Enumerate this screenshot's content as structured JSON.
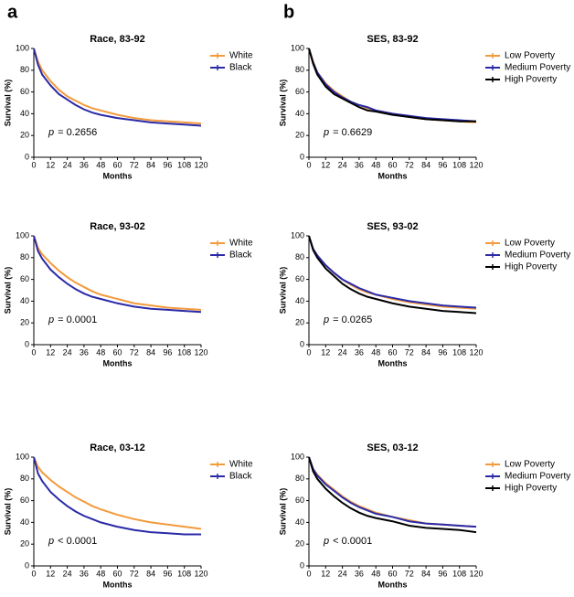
{
  "panel_labels": [
    "a",
    "b"
  ],
  "chart_data": [
    {
      "type": "line",
      "title": "Race, 83-92",
      "xlabel": "Months",
      "ylabel": "Survival (%)",
      "p_label": "p",
      "p_text": "= 0.2656",
      "x": [
        0,
        3,
        6,
        12,
        18,
        24,
        30,
        36,
        42,
        48,
        60,
        72,
        84,
        96,
        108,
        120
      ],
      "xlim": [
        0,
        120
      ],
      "ylim": [
        0,
        100
      ],
      "xticks": [
        0,
        12,
        24,
        36,
        48,
        60,
        72,
        84,
        96,
        108,
        120
      ],
      "yticks": [
        0,
        20,
        40,
        60,
        80,
        100
      ],
      "legend": "upper right",
      "series": [
        {
          "name": "White",
          "color": "#f39a3c",
          "values": [
            100,
            88,
            80,
            70,
            62,
            56,
            52,
            48,
            45,
            43,
            39,
            36,
            34,
            33,
            32,
            31
          ]
        },
        {
          "name": "Black",
          "color": "#2a2aa8",
          "values": [
            100,
            85,
            76,
            66,
            58,
            53,
            48,
            44,
            41,
            39,
            36,
            34,
            32,
            31,
            30,
            29
          ]
        }
      ]
    },
    {
      "type": "line",
      "title": "SES, 83-92",
      "xlabel": "Months",
      "ylabel": "Survival (%)",
      "p_label": "p",
      "p_text": "= 0.6629",
      "x": [
        0,
        3,
        6,
        12,
        18,
        24,
        30,
        36,
        42,
        48,
        60,
        72,
        84,
        96,
        108,
        120
      ],
      "xlim": [
        0,
        120
      ],
      "ylim": [
        0,
        100
      ],
      "xticks": [
        0,
        12,
        24,
        36,
        48,
        60,
        72,
        84,
        96,
        108,
        120
      ],
      "yticks": [
        0,
        20,
        40,
        60,
        80,
        100
      ],
      "legend": "upper right",
      "series": [
        {
          "name": "Low Poverty",
          "color": "#f39a3c",
          "values": [
            100,
            88,
            78,
            68,
            61,
            56,
            51,
            48,
            45,
            43,
            40,
            37,
            35,
            34,
            33,
            32
          ]
        },
        {
          "name": "Medium Poverty",
          "color": "#2a2aa8",
          "values": [
            100,
            87,
            78,
            67,
            60,
            55,
            51,
            48,
            46,
            43,
            40,
            38,
            36,
            35,
            34,
            33
          ]
        },
        {
          "name": "High Poverty",
          "color": "#000000",
          "values": [
            100,
            86,
            76,
            65,
            58,
            54,
            50,
            46,
            43,
            42,
            39,
            37,
            35,
            34,
            33,
            33
          ]
        }
      ]
    },
    {
      "type": "line",
      "title": "Race, 93-02",
      "xlabel": "Months",
      "ylabel": "Survival (%)",
      "p_label": "p",
      "p_text": "= 0.0001",
      "x": [
        0,
        3,
        6,
        12,
        18,
        24,
        30,
        36,
        42,
        48,
        60,
        72,
        84,
        96,
        108,
        120
      ],
      "xlim": [
        0,
        120
      ],
      "ylim": [
        0,
        100
      ],
      "xticks": [
        0,
        12,
        24,
        36,
        48,
        60,
        72,
        84,
        96,
        108,
        120
      ],
      "yticks": [
        0,
        20,
        40,
        60,
        80,
        100
      ],
      "legend": "upper right",
      "series": [
        {
          "name": "White",
          "color": "#f39a3c",
          "values": [
            100,
            89,
            83,
            75,
            68,
            62,
            57,
            53,
            49,
            46,
            42,
            38,
            36,
            34,
            33,
            32
          ]
        },
        {
          "name": "Black",
          "color": "#2a2aa8",
          "values": [
            100,
            86,
            79,
            69,
            62,
            56,
            51,
            47,
            44,
            42,
            38,
            35,
            33,
            32,
            31,
            30
          ]
        }
      ]
    },
    {
      "type": "line",
      "title": "SES, 93-02",
      "xlabel": "Months",
      "ylabel": "Survival (%)",
      "p_label": "p",
      "p_text": "= 0.0265",
      "x": [
        0,
        3,
        6,
        12,
        18,
        24,
        30,
        36,
        42,
        48,
        60,
        72,
        84,
        96,
        108,
        120
      ],
      "xlim": [
        0,
        120
      ],
      "ylim": [
        0,
        100
      ],
      "xticks": [
        0,
        12,
        24,
        36,
        48,
        60,
        72,
        84,
        96,
        108,
        120
      ],
      "yticks": [
        0,
        20,
        40,
        60,
        80,
        100
      ],
      "legend": "upper right",
      "series": [
        {
          "name": "Low Poverty",
          "color": "#f39a3c",
          "values": [
            100,
            88,
            82,
            73,
            66,
            60,
            55,
            51,
            48,
            46,
            42,
            39,
            37,
            35,
            34,
            33
          ]
        },
        {
          "name": "Medium Poverty",
          "color": "#2a2aa8",
          "values": [
            100,
            88,
            82,
            73,
            66,
            60,
            56,
            52,
            49,
            46,
            43,
            40,
            38,
            36,
            35,
            34
          ]
        },
        {
          "name": "High Poverty",
          "color": "#000000",
          "values": [
            100,
            87,
            80,
            70,
            63,
            56,
            51,
            47,
            44,
            42,
            38,
            35,
            33,
            31,
            30,
            29
          ]
        }
      ]
    },
    {
      "type": "line",
      "title": "Race, 03-12",
      "xlabel": "Months",
      "ylabel": "Survival (%)",
      "p_label": "p",
      "p_text": "< 0.0001",
      "x": [
        0,
        3,
        6,
        12,
        18,
        24,
        30,
        36,
        42,
        48,
        60,
        72,
        84,
        96,
        108,
        120
      ],
      "xlim": [
        0,
        120
      ],
      "ylim": [
        0,
        100
      ],
      "xticks": [
        0,
        12,
        24,
        36,
        48,
        60,
        72,
        84,
        96,
        108,
        120
      ],
      "yticks": [
        0,
        20,
        40,
        60,
        80,
        100
      ],
      "legend": "upper right",
      "series": [
        {
          "name": "White",
          "color": "#f39a3c",
          "values": [
            100,
            91,
            86,
            79,
            73,
            68,
            63,
            59,
            55,
            52,
            47,
            43,
            40,
            38,
            36,
            34
          ]
        },
        {
          "name": "Black",
          "color": "#2a2aa8",
          "values": [
            100,
            85,
            78,
            68,
            61,
            55,
            50,
            46,
            43,
            40,
            36,
            33,
            31,
            30,
            29,
            29
          ]
        }
      ]
    },
    {
      "type": "line",
      "title": "SES, 03-12",
      "xlabel": "Months",
      "ylabel": "Survival (%)",
      "p_label": "p",
      "p_text": "< 0.0001",
      "x": [
        0,
        3,
        6,
        12,
        18,
        24,
        30,
        36,
        42,
        48,
        60,
        72,
        84,
        96,
        108,
        120
      ],
      "xlim": [
        0,
        120
      ],
      "ylim": [
        0,
        100
      ],
      "xticks": [
        0,
        12,
        24,
        36,
        48,
        60,
        72,
        84,
        96,
        108,
        120
      ],
      "yticks": [
        0,
        20,
        40,
        60,
        80,
        100
      ],
      "legend": "upper right",
      "series": [
        {
          "name": "Low Poverty",
          "color": "#f39a3c",
          "values": [
            100,
            89,
            84,
            76,
            70,
            64,
            59,
            55,
            52,
            49,
            45,
            42,
            39,
            38,
            37,
            36
          ]
        },
        {
          "name": "Medium Poverty",
          "color": "#2a2aa8",
          "values": [
            100,
            89,
            83,
            75,
            69,
            63,
            58,
            54,
            51,
            48,
            45,
            41,
            39,
            38,
            37,
            36
          ]
        },
        {
          "name": "High Poverty",
          "color": "#000000",
          "values": [
            100,
            87,
            80,
            71,
            64,
            58,
            53,
            49,
            46,
            44,
            41,
            37,
            35,
            34,
            33,
            31
          ]
        }
      ]
    }
  ]
}
